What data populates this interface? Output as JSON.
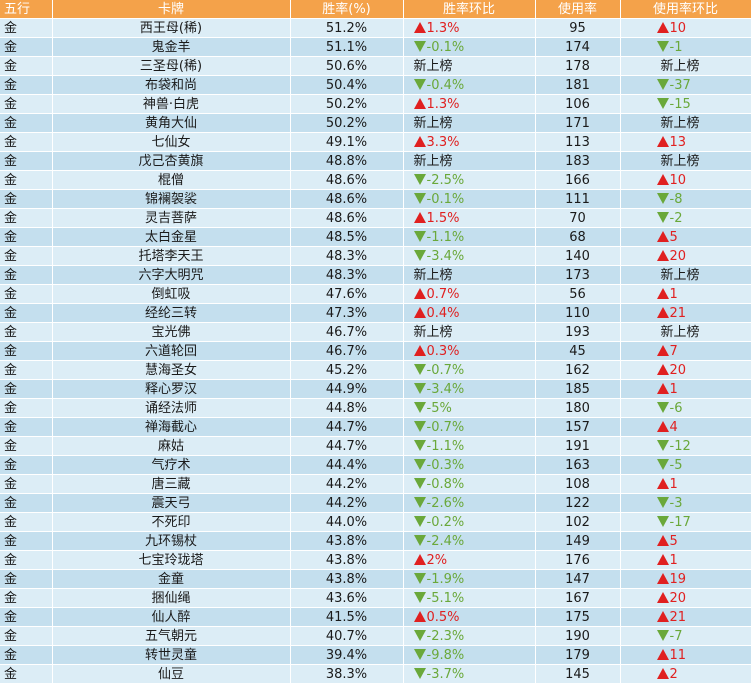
{
  "headers": {
    "wuxing": "五行",
    "card": "卡牌",
    "winrate": "胜率(%)",
    "winrate_change": "胜率环比",
    "usage": "使用率",
    "usage_change": "使用率环比"
  },
  "colors": {
    "header_bg": "#f4a24a",
    "row_light": "#dcedf6",
    "row_dark": "#c4dfee",
    "up": "#e02020",
    "down": "#6aa83a"
  },
  "rows": [
    {
      "wuxing": "金",
      "card": "西王母(稀)",
      "winrate": "51.2%",
      "wr_dir": "up",
      "wr_change": "1.3%",
      "usage": "95",
      "us_dir": "up",
      "us_change": "10"
    },
    {
      "wuxing": "金",
      "card": "鬼金羊",
      "winrate": "51.1%",
      "wr_dir": "down",
      "wr_change": "-0.1%",
      "usage": "174",
      "us_dir": "down",
      "us_change": "-1"
    },
    {
      "wuxing": "金",
      "card": "三圣母(稀)",
      "winrate": "50.6%",
      "wr_dir": "new",
      "wr_change": "新上榜",
      "usage": "178",
      "us_dir": "new",
      "us_change": "新上榜"
    },
    {
      "wuxing": "金",
      "card": "布袋和尚",
      "winrate": "50.4%",
      "wr_dir": "down",
      "wr_change": "-0.4%",
      "usage": "181",
      "us_dir": "down",
      "us_change": "-37"
    },
    {
      "wuxing": "金",
      "card": "神兽·白虎",
      "winrate": "50.2%",
      "wr_dir": "up",
      "wr_change": "1.3%",
      "usage": "106",
      "us_dir": "down",
      "us_change": "-15"
    },
    {
      "wuxing": "金",
      "card": "黄角大仙",
      "winrate": "50.2%",
      "wr_dir": "new",
      "wr_change": "新上榜",
      "usage": "171",
      "us_dir": "new",
      "us_change": "新上榜"
    },
    {
      "wuxing": "金",
      "card": "七仙女",
      "winrate": "49.1%",
      "wr_dir": "up",
      "wr_change": "3.3%",
      "usage": "113",
      "us_dir": "up",
      "us_change": "13"
    },
    {
      "wuxing": "金",
      "card": "戊己杏黄旗",
      "winrate": "48.8%",
      "wr_dir": "new",
      "wr_change": "新上榜",
      "usage": "183",
      "us_dir": "new",
      "us_change": "新上榜"
    },
    {
      "wuxing": "金",
      "card": "棍僧",
      "winrate": "48.6%",
      "wr_dir": "down",
      "wr_change": "-2.5%",
      "usage": "166",
      "us_dir": "up",
      "us_change": "10"
    },
    {
      "wuxing": "金",
      "card": "锦襕袈裟",
      "winrate": "48.6%",
      "wr_dir": "down",
      "wr_change": "-0.1%",
      "usage": "111",
      "us_dir": "down",
      "us_change": "-8"
    },
    {
      "wuxing": "金",
      "card": "灵吉菩萨",
      "winrate": "48.6%",
      "wr_dir": "up",
      "wr_change": "1.5%",
      "usage": "70",
      "us_dir": "down",
      "us_change": "-2"
    },
    {
      "wuxing": "金",
      "card": "太白金星",
      "winrate": "48.5%",
      "wr_dir": "down",
      "wr_change": "-1.1%",
      "usage": "68",
      "us_dir": "up",
      "us_change": "5"
    },
    {
      "wuxing": "金",
      "card": "托塔李天王",
      "winrate": "48.3%",
      "wr_dir": "down",
      "wr_change": "-3.4%",
      "usage": "140",
      "us_dir": "up",
      "us_change": "20"
    },
    {
      "wuxing": "金",
      "card": "六字大明咒",
      "winrate": "48.3%",
      "wr_dir": "new",
      "wr_change": "新上榜",
      "usage": "173",
      "us_dir": "new",
      "us_change": "新上榜"
    },
    {
      "wuxing": "金",
      "card": "倒虹吸",
      "winrate": "47.6%",
      "wr_dir": "up",
      "wr_change": "0.7%",
      "usage": "56",
      "us_dir": "up",
      "us_change": "1"
    },
    {
      "wuxing": "金",
      "card": "经纶三转",
      "winrate": "47.3%",
      "wr_dir": "up",
      "wr_change": "0.4%",
      "usage": "110",
      "us_dir": "up",
      "us_change": "21"
    },
    {
      "wuxing": "金",
      "card": "宝光佛",
      "winrate": "46.7%",
      "wr_dir": "new",
      "wr_change": "新上榜",
      "usage": "193",
      "us_dir": "new",
      "us_change": "新上榜"
    },
    {
      "wuxing": "金",
      "card": "六道轮回",
      "winrate": "46.7%",
      "wr_dir": "up",
      "wr_change": "0.3%",
      "usage": "45",
      "us_dir": "up",
      "us_change": "7"
    },
    {
      "wuxing": "金",
      "card": "慧海圣女",
      "winrate": "45.2%",
      "wr_dir": "down",
      "wr_change": "-0.7%",
      "usage": "162",
      "us_dir": "up",
      "us_change": "20"
    },
    {
      "wuxing": "金",
      "card": "释心罗汉",
      "winrate": "44.9%",
      "wr_dir": "down",
      "wr_change": "-3.4%",
      "usage": "185",
      "us_dir": "up",
      "us_change": "1"
    },
    {
      "wuxing": "金",
      "card": "诵经法师",
      "winrate": "44.8%",
      "wr_dir": "down",
      "wr_change": "-5%",
      "usage": "180",
      "us_dir": "down",
      "us_change": "-6"
    },
    {
      "wuxing": "金",
      "card": "禅海截心",
      "winrate": "44.7%",
      "wr_dir": "down",
      "wr_change": "-0.7%",
      "usage": "157",
      "us_dir": "up",
      "us_change": "4"
    },
    {
      "wuxing": "金",
      "card": "麻姑",
      "winrate": "44.7%",
      "wr_dir": "down",
      "wr_change": "-1.1%",
      "usage": "191",
      "us_dir": "down",
      "us_change": "-12"
    },
    {
      "wuxing": "金",
      "card": "气疗术",
      "winrate": "44.4%",
      "wr_dir": "down",
      "wr_change": "-0.3%",
      "usage": "163",
      "us_dir": "down",
      "us_change": "-5"
    },
    {
      "wuxing": "金",
      "card": "唐三藏",
      "winrate": "44.2%",
      "wr_dir": "down",
      "wr_change": "-0.8%",
      "usage": "108",
      "us_dir": "up",
      "us_change": "1"
    },
    {
      "wuxing": "金",
      "card": "震天弓",
      "winrate": "44.2%",
      "wr_dir": "down",
      "wr_change": "-2.6%",
      "usage": "122",
      "us_dir": "down",
      "us_change": "-3"
    },
    {
      "wuxing": "金",
      "card": "不死印",
      "winrate": "44.0%",
      "wr_dir": "down",
      "wr_change": "-0.2%",
      "usage": "102",
      "us_dir": "down",
      "us_change": "-17"
    },
    {
      "wuxing": "金",
      "card": "九环锡杖",
      "winrate": "43.8%",
      "wr_dir": "down",
      "wr_change": "-2.4%",
      "usage": "149",
      "us_dir": "up",
      "us_change": "5"
    },
    {
      "wuxing": "金",
      "card": "七宝玲珑塔",
      "winrate": "43.8%",
      "wr_dir": "up",
      "wr_change": "2%",
      "usage": "176",
      "us_dir": "up",
      "us_change": "1"
    },
    {
      "wuxing": "金",
      "card": "金童",
      "winrate": "43.8%",
      "wr_dir": "down",
      "wr_change": "-1.9%",
      "usage": "147",
      "us_dir": "up",
      "us_change": "19"
    },
    {
      "wuxing": "金",
      "card": "捆仙绳",
      "winrate": "43.6%",
      "wr_dir": "down",
      "wr_change": "-5.1%",
      "usage": "167",
      "us_dir": "up",
      "us_change": "20"
    },
    {
      "wuxing": "金",
      "card": "仙人醉",
      "winrate": "41.5%",
      "wr_dir": "up",
      "wr_change": "0.5%",
      "usage": "175",
      "us_dir": "up",
      "us_change": "21"
    },
    {
      "wuxing": "金",
      "card": "五气朝元",
      "winrate": "40.7%",
      "wr_dir": "down",
      "wr_change": "-2.3%",
      "usage": "190",
      "us_dir": "down",
      "us_change": "-7"
    },
    {
      "wuxing": "金",
      "card": "转世灵童",
      "winrate": "39.4%",
      "wr_dir": "down",
      "wr_change": "-9.8%",
      "usage": "179",
      "us_dir": "up",
      "us_change": "11"
    },
    {
      "wuxing": "金",
      "card": "仙豆",
      "winrate": "38.3%",
      "wr_dir": "down",
      "wr_change": "-3.7%",
      "usage": "145",
      "us_dir": "up",
      "us_change": "2"
    }
  ]
}
